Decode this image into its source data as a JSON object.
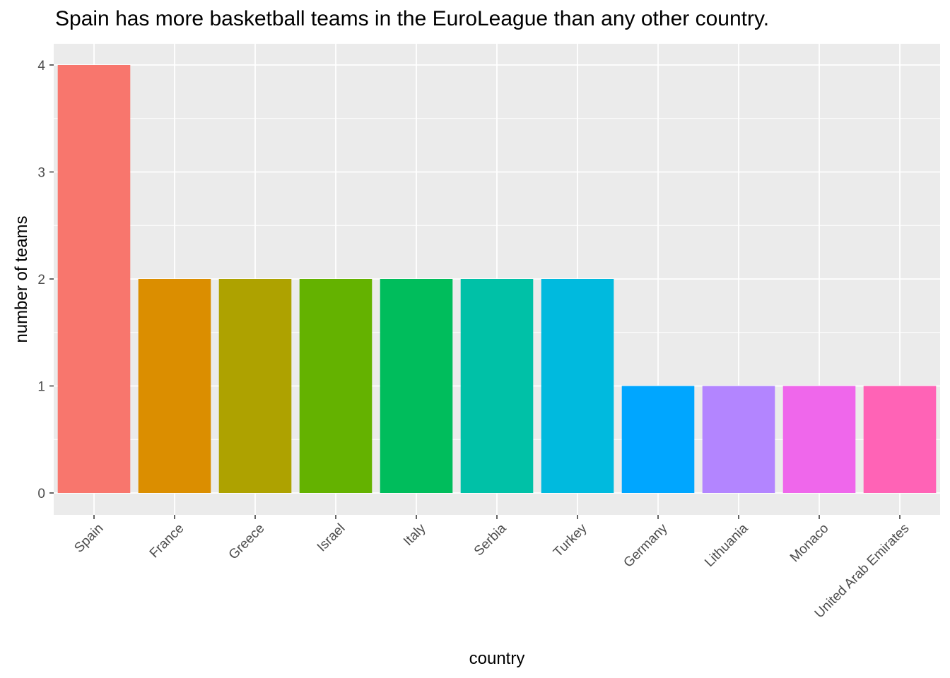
{
  "chart_data": {
    "type": "bar",
    "title": "Spain has more basketball teams in the EuroLeague than any other country.",
    "xlabel": "country",
    "ylabel": "number of teams",
    "categories": [
      "Spain",
      "France",
      "Greece",
      "Israel",
      "Italy",
      "Serbia",
      "Turkey",
      "Germany",
      "Lithuania",
      "Monaco",
      "United Arab Emirates"
    ],
    "values": [
      4,
      2,
      2,
      2,
      2,
      2,
      2,
      1,
      1,
      1,
      1
    ],
    "colors": [
      "#F8766D",
      "#DB8E00",
      "#AEA200",
      "#64B200",
      "#00BD5C",
      "#00C1A7",
      "#00BADE",
      "#00A6FF",
      "#B385FF",
      "#EF67EB",
      "#FF63B6"
    ],
    "ylim": [
      0,
      4
    ],
    "yticks": [
      0,
      1,
      2,
      3,
      4
    ],
    "grid": true,
    "legend": "none",
    "panel_background": "#EBEBEB",
    "grid_color": "#FFFFFF"
  }
}
